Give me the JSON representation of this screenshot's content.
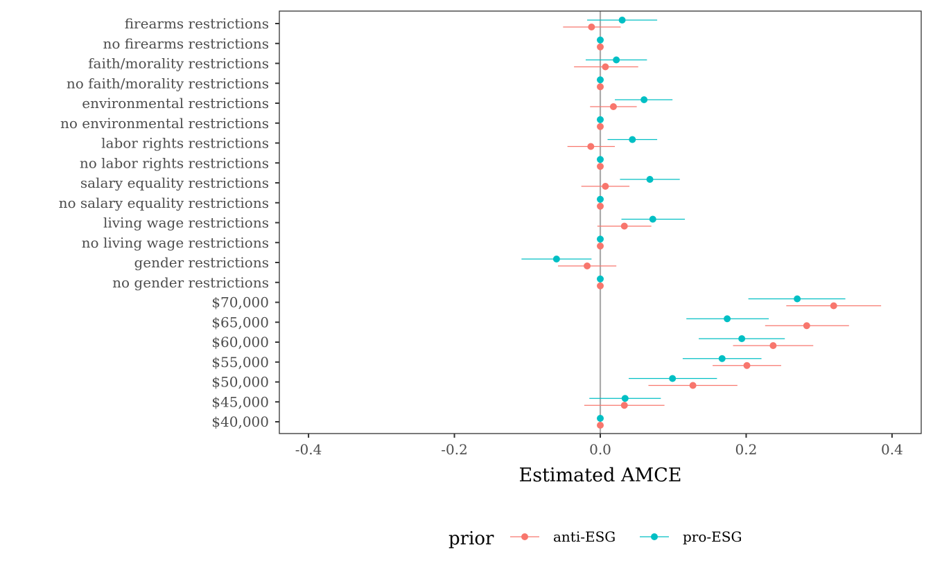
{
  "chart_data": {
    "type": "scatter",
    "subtype": "coefficient-plot-with-error-bars",
    "title": "",
    "xlabel": "Estimated AMCE",
    "ylabel": "",
    "xlim": [
      -0.44,
      0.44
    ],
    "xticks": [
      -0.4,
      -0.2,
      0.0,
      0.2,
      0.4
    ],
    "xtick_labels": [
      "-0.4",
      "-0.2",
      "0.0",
      "0.2",
      "0.4"
    ],
    "reference_line_x": 0,
    "grid": false,
    "legend": {
      "title": "prior",
      "position": "bottom",
      "entries": [
        "anti-ESG",
        "pro-ESG"
      ]
    },
    "categories": [
      "firearms restrictions",
      "no firearms restrictions",
      "faith/morality restrictions",
      "no faith/morality restrictions",
      "environmental restrictions",
      "no environmental restrictions",
      "labor rights restrictions",
      "no labor rights restrictions",
      "salary equality restrictions",
      "no salary equality restrictions",
      "living wage restrictions",
      "no living wage restrictions",
      "gender restrictions",
      "no gender restrictions",
      "$70,000",
      "$65,000",
      "$60,000",
      "$55,000",
      "$50,000",
      "$45,000",
      "$40,000"
    ],
    "series": [
      {
        "name": "anti-ESG",
        "color": "#F8766D",
        "estimate": [
          -0.012,
          0,
          0.007,
          0,
          0.018,
          0,
          -0.013,
          0,
          0.007,
          0,
          0.033,
          0,
          -0.018,
          0,
          0.32,
          0.283,
          0.237,
          0.201,
          0.127,
          0.033,
          0
        ],
        "lower": [
          -0.051,
          0,
          -0.036,
          0,
          -0.014,
          0,
          -0.045,
          0,
          -0.026,
          0,
          -0.004,
          0,
          -0.058,
          0,
          0.255,
          0.226,
          0.182,
          0.154,
          0.066,
          -0.022,
          0
        ],
        "upper": [
          0.028,
          0,
          0.052,
          0,
          0.05,
          0,
          0.02,
          0,
          0.04,
          0,
          0.07,
          0,
          0.022,
          0,
          0.385,
          0.341,
          0.292,
          0.248,
          0.188,
          0.088,
          0
        ]
      },
      {
        "name": "pro-ESG",
        "color": "#00BFC4",
        "estimate": [
          0.03,
          0,
          0.022,
          0,
          0.06,
          0,
          0.044,
          0,
          0.068,
          0,
          0.072,
          0,
          -0.06,
          0,
          0.27,
          0.174,
          0.194,
          0.167,
          0.099,
          0.034,
          0
        ],
        "lower": [
          -0.018,
          0,
          -0.02,
          0,
          0.02,
          0,
          0.01,
          0,
          0.027,
          0,
          0.029,
          0,
          -0.108,
          0,
          0.203,
          0.118,
          0.135,
          0.113,
          0.039,
          -0.015,
          0
        ],
        "upper": [
          0.078,
          0,
          0.064,
          0,
          0.099,
          0,
          0.078,
          0,
          0.109,
          0,
          0.116,
          0,
          -0.012,
          0,
          0.336,
          0.231,
          0.253,
          0.221,
          0.16,
          0.083,
          0
        ]
      }
    ]
  }
}
